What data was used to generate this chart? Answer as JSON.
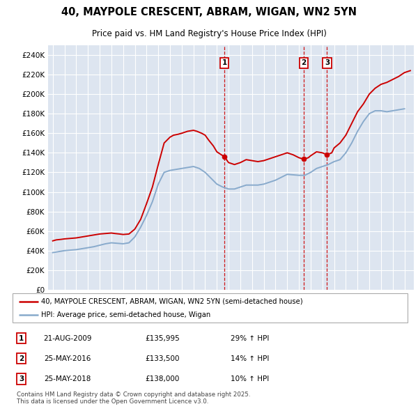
{
  "title": "40, MAYPOLE CRESCENT, ABRAM, WIGAN, WN2 5YN",
  "subtitle": "Price paid vs. HM Land Registry's House Price Index (HPI)",
  "ylabel_ticks": [
    "£0",
    "£20K",
    "£40K",
    "£60K",
    "£80K",
    "£100K",
    "£120K",
    "£140K",
    "£160K",
    "£180K",
    "£200K",
    "£220K",
    "£240K"
  ],
  "ylim": [
    0,
    250000
  ],
  "xlim_start": 1994.6,
  "xlim_end": 2025.8,
  "background_color": "#dde5f0",
  "grid_color": "#ffffff",
  "legend_entries": [
    "40, MAYPOLE CRESCENT, ABRAM, WIGAN, WN2 5YN (semi-detached house)",
    "HPI: Average price, semi-detached house, Wigan"
  ],
  "sale_color": "#cc0000",
  "hpi_color": "#88aacc",
  "sale_markers": [
    {
      "num": 1,
      "date_decimal": 2009.64,
      "price": 135995,
      "label": "1"
    },
    {
      "num": 2,
      "date_decimal": 2016.4,
      "price": 133500,
      "label": "2"
    },
    {
      "num": 3,
      "date_decimal": 2018.4,
      "price": 138000,
      "label": "3"
    }
  ],
  "table_rows": [
    {
      "num": "1",
      "date": "21-AUG-2009",
      "price": "£135,995",
      "hpi": "29% ↑ HPI"
    },
    {
      "num": "2",
      "date": "25-MAY-2016",
      "price": "£133,500",
      "hpi": "14% ↑ HPI"
    },
    {
      "num": "3",
      "date": "25-MAY-2018",
      "price": "£138,000",
      "hpi": "10% ↑ HPI"
    }
  ],
  "footnote": "Contains HM Land Registry data © Crown copyright and database right 2025.\nThis data is licensed under the Open Government Licence v3.0.",
  "sale_line_data_x": [
    1995.0,
    1995.3,
    1995.7,
    1996.0,
    1996.5,
    1997.0,
    1997.5,
    1998.0,
    1998.5,
    1999.0,
    1999.5,
    2000.0,
    2000.3,
    2000.7,
    2001.0,
    2001.5,
    2002.0,
    2002.5,
    2003.0,
    2003.5,
    2004.0,
    2004.5,
    2005.0,
    2005.3,
    2005.7,
    2006.0,
    2006.5,
    2007.0,
    2007.3,
    2007.7,
    2008.0,
    2008.3,
    2008.7,
    2009.0,
    2009.64,
    2010.0,
    2010.5,
    2011.0,
    2011.5,
    2012.0,
    2012.5,
    2013.0,
    2013.5,
    2014.0,
    2014.5,
    2015.0,
    2015.5,
    2016.0,
    2016.4,
    2016.8,
    2017.0,
    2017.5,
    2018.0,
    2018.4,
    2018.8,
    2019.0,
    2019.5,
    2020.0,
    2020.5,
    2021.0,
    2021.5,
    2022.0,
    2022.5,
    2023.0,
    2023.5,
    2024.0,
    2024.5,
    2025.0,
    2025.5
  ],
  "sale_line_data_y": [
    50000,
    51000,
    51500,
    52000,
    52500,
    53000,
    54000,
    55000,
    56000,
    57000,
    57500,
    58000,
    57500,
    57000,
    56500,
    57000,
    62000,
    72000,
    88000,
    105000,
    128000,
    150000,
    156000,
    158000,
    159000,
    160000,
    162000,
    163000,
    162000,
    160000,
    158000,
    153000,
    147000,
    141000,
    135995,
    130000,
    128000,
    130000,
    133000,
    132000,
    131000,
    132000,
    134000,
    136000,
    138000,
    140000,
    138000,
    135000,
    133500,
    135000,
    137000,
    141000,
    140000,
    138000,
    140000,
    145000,
    150000,
    158000,
    170000,
    182000,
    190000,
    200000,
    206000,
    210000,
    212000,
    215000,
    218000,
    222000,
    224000
  ],
  "hpi_line_data_x": [
    1995.0,
    1995.5,
    1996.0,
    1996.5,
    1997.0,
    1997.5,
    1998.0,
    1998.5,
    1999.0,
    1999.5,
    2000.0,
    2000.5,
    2001.0,
    2001.5,
    2002.0,
    2002.5,
    2003.0,
    2003.5,
    2004.0,
    2004.5,
    2005.0,
    2005.5,
    2006.0,
    2006.5,
    2007.0,
    2007.5,
    2008.0,
    2008.5,
    2009.0,
    2009.5,
    2010.0,
    2010.5,
    2011.0,
    2011.5,
    2012.0,
    2012.5,
    2013.0,
    2013.5,
    2014.0,
    2014.5,
    2015.0,
    2015.5,
    2016.0,
    2016.5,
    2017.0,
    2017.5,
    2018.0,
    2018.5,
    2019.0,
    2019.5,
    2020.0,
    2020.5,
    2021.0,
    2021.5,
    2022.0,
    2022.5,
    2023.0,
    2023.5,
    2024.0,
    2024.5,
    2025.0
  ],
  "hpi_line_data_y": [
    38000,
    39000,
    40000,
    40500,
    41000,
    42000,
    43000,
    44000,
    45500,
    47000,
    48000,
    47500,
    47000,
    48000,
    54000,
    64000,
    76000,
    90000,
    108000,
    120000,
    122000,
    123000,
    124000,
    125000,
    126000,
    124000,
    120000,
    114000,
    108000,
    105000,
    103000,
    103000,
    105000,
    107000,
    107000,
    107000,
    108000,
    110000,
    112000,
    115000,
    118000,
    117500,
    117000,
    117000,
    120000,
    124000,
    126000,
    128000,
    131000,
    133000,
    140000,
    150000,
    162000,
    172000,
    180000,
    183000,
    183000,
    182000,
    183000,
    184000,
    185000
  ]
}
